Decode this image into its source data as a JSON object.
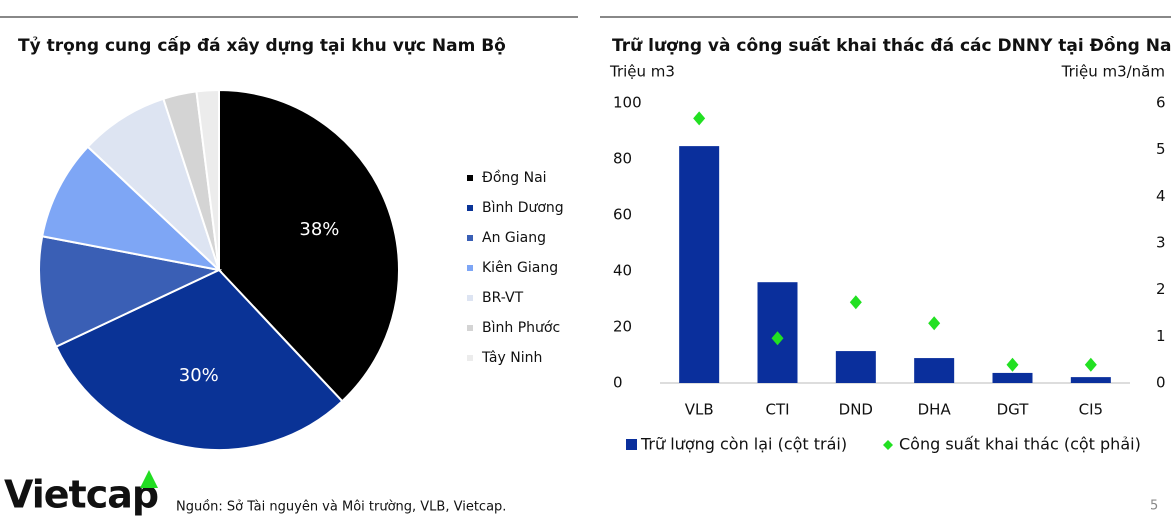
{
  "chart_data": [
    {
      "type": "pie",
      "title": "Tỷ trọng cung cấp đá xây dựng tại khu vực Nam Bộ",
      "categories": [
        "Đồng Nai",
        "Bình Dương",
        "An Giang",
        "Kiên Giang",
        "BR-VT",
        "Bình Phước",
        "Tây Ninh"
      ],
      "values": [
        38,
        30,
        10,
        9,
        8,
        3,
        2
      ],
      "value_labels": [
        "38%",
        "30%",
        null,
        null,
        null,
        null,
        null
      ],
      "colors": [
        "#000000",
        "#0a3396",
        "#3a5fb5",
        "#7ea6f5",
        "#dde4f2",
        "#d4d4d4",
        "#ececec"
      ]
    },
    {
      "type": "bar",
      "title": "Trữ lượng và công suất khai thác đá các DNNY tại Đồng Nai",
      "ylabel": "Triệu m3",
      "y2label": "Triệu m3/năm",
      "categories": [
        "VLB",
        "CTI",
        "DND",
        "DHA",
        "DGT",
        "CI5"
      ],
      "ylim": [
        0,
        100
      ],
      "yticks": [
        0,
        20,
        40,
        60,
        80,
        100
      ],
      "y2lim": [
        0,
        6
      ],
      "y2ticks": [
        0,
        1,
        2,
        3,
        4,
        5,
        6
      ],
      "series": [
        {
          "name": "Trữ lượng còn lại (cột trái)",
          "color": "#0a2f9c",
          "values": [
            84.6,
            36,
            11.4,
            8.9,
            3.6,
            2.1
          ]
        },
        {
          "name": "Công suất khai thác (cột phải)",
          "color": "#22e022",
          "axis": "y2",
          "values": [
            5.67,
            0.96,
            1.73,
            1.28,
            0.39,
            0.39
          ]
        }
      ]
    }
  ],
  "footer": {
    "logo": "Vietcap",
    "source": "Nguồn: Sở Tài nguyên và Môi trường, VLB, Vietcap.",
    "page": "5"
  }
}
